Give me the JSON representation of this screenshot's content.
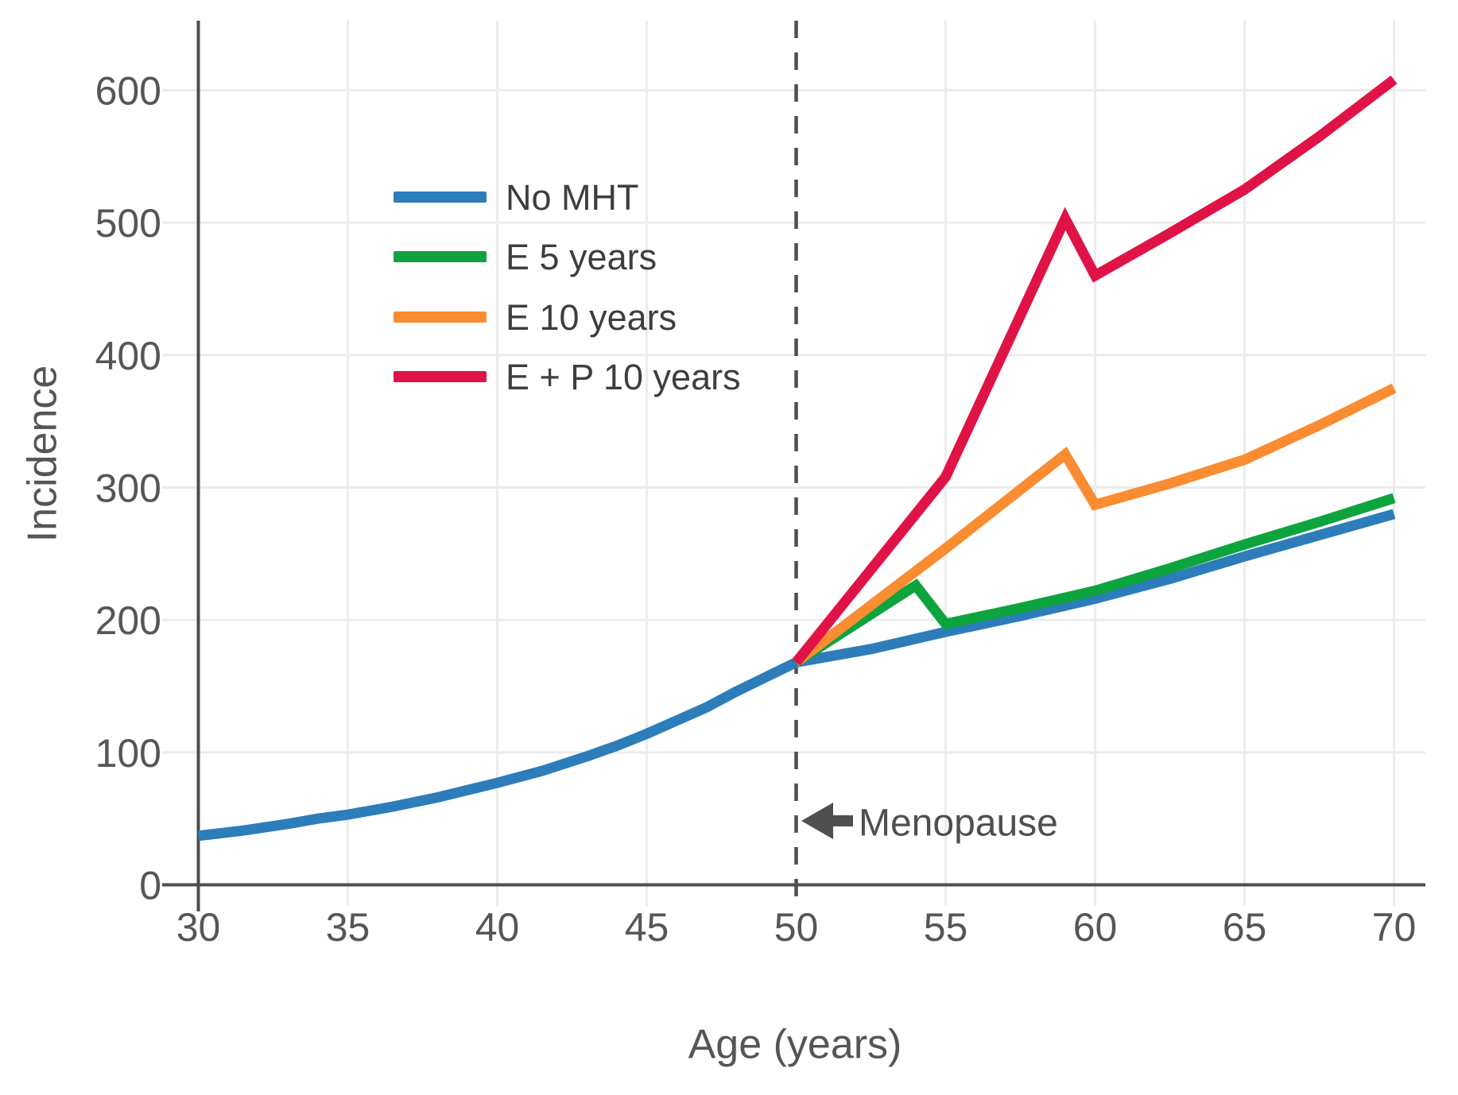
{
  "chart": {
    "background": "#ffffff",
    "axis_color": "#4d4d4d",
    "grid_color": "#ececec",
    "tick_label_color": "#565656",
    "title_color": "#555555",
    "legend_text_color": "#3e3e3e",
    "annotation_color": "#4f4f4f"
  },
  "chart_data": {
    "type": "line",
    "title": "",
    "xlabel": "Age (years)",
    "ylabel": "Incidence",
    "xlim": [
      30,
      70
    ],
    "ylim": [
      0,
      650
    ],
    "xticks": [
      30,
      35,
      40,
      45,
      50,
      55,
      60,
      65,
      70
    ],
    "yticks": [
      0,
      100,
      200,
      300,
      400,
      500,
      600
    ],
    "grid": true,
    "legend_position": "upper-left-inside",
    "vline": {
      "x": 50,
      "style": "dashed",
      "color": "#4f4f4f"
    },
    "annotation": {
      "text": "Menopause",
      "arrow": "left",
      "at_x": 50,
      "y_value": 48
    },
    "series": [
      {
        "name": "No MHT",
        "color": "#2d7dbb",
        "points": [
          [
            30,
            37
          ],
          [
            31.5,
            41
          ],
          [
            33,
            46
          ],
          [
            34,
            50
          ],
          [
            35,
            53
          ],
          [
            36.5,
            59
          ],
          [
            38,
            66
          ],
          [
            40,
            77
          ],
          [
            41.5,
            86
          ],
          [
            43,
            97
          ],
          [
            44,
            105
          ],
          [
            45,
            114
          ],
          [
            46,
            124
          ],
          [
            47,
            134
          ],
          [
            48,
            146
          ],
          [
            49,
            157
          ],
          [
            50,
            168
          ],
          [
            51,
            172
          ],
          [
            52.5,
            178
          ],
          [
            55,
            191
          ],
          [
            57.5,
            203
          ],
          [
            60,
            216
          ],
          [
            62.5,
            231
          ],
          [
            65,
            248
          ],
          [
            67.5,
            264
          ],
          [
            70,
            280
          ]
        ]
      },
      {
        "name": "E 5 years",
        "color": "#0da43e",
        "points": [
          [
            50,
            168
          ],
          [
            54,
            226
          ],
          [
            55,
            197
          ],
          [
            57.5,
            209
          ],
          [
            60,
            222
          ],
          [
            62.5,
            239
          ],
          [
            65,
            257
          ],
          [
            67.5,
            274
          ],
          [
            70,
            292
          ]
        ]
      },
      {
        "name": "E 10 years",
        "color": "#fa8c31",
        "points": [
          [
            50,
            168
          ],
          [
            55,
            254
          ],
          [
            59,
            325
          ],
          [
            60,
            287
          ],
          [
            62.5,
            303
          ],
          [
            65,
            321
          ],
          [
            67.5,
            347
          ],
          [
            70,
            375
          ]
        ]
      },
      {
        "name": "E + P 10 years",
        "color": "#e01347",
        "points": [
          [
            50,
            168
          ],
          [
            55,
            308
          ],
          [
            59,
            503
          ],
          [
            60,
            460
          ],
          [
            62.5,
            492
          ],
          [
            65,
            525
          ],
          [
            67.5,
            565
          ],
          [
            70,
            608
          ]
        ]
      }
    ]
  }
}
